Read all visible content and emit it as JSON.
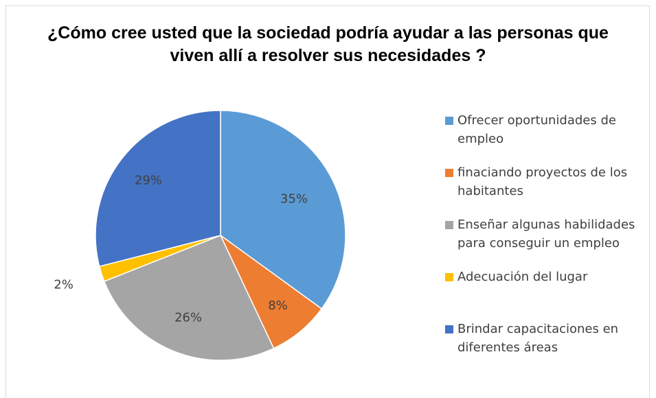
{
  "chart_data": {
    "type": "pie",
    "title": "¿Cómo cree usted que la sociedad podría ayudar a las personas que viven allí a resolver sus necesidades ?",
    "categories": [
      "Ofrecer oportunidades de empleo",
      "finaciando proyectos de los habitantes",
      "Enseñar algunas habilidades para conseguir un empleo",
      "Adecuación del lugar",
      "Brindar capacitaciones en diferentes áreas"
    ],
    "values": [
      35,
      8,
      26,
      2,
      29
    ],
    "data_labels": [
      "35%",
      "8%",
      "26%",
      "2%",
      "29%"
    ],
    "colors": [
      "#5b9bd5",
      "#ed7d31",
      "#a5a5a5",
      "#ffc000",
      "#4472c4"
    ],
    "legend_position": "right"
  }
}
